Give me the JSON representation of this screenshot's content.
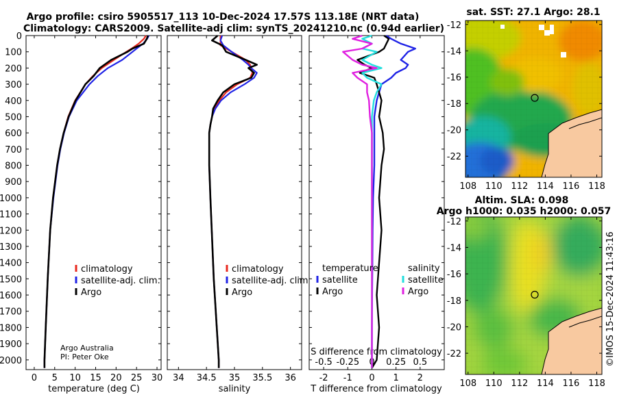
{
  "header": {
    "line1": "Argo profile: csiro 5905517_113 10-Dec-2024 17.57S 113.18E (NRT data)",
    "line2": "Climatology: CARS2009. Satellite-adj clim: synTS_20241210.nc (0.94d earlier)"
  },
  "credit": {
    "org": "Argo Australia",
    "pi": "PI: Peter Oke"
  },
  "watermark": "©IMOS 15-Dec-2024 11:43:16",
  "colors": {
    "climatology": "#e8281e",
    "satellite": "#1f23e6",
    "argo": "#000000",
    "sal_satellite": "#22dede",
    "sal_argo": "#e020e0"
  },
  "chart_data": [
    {
      "type": "line",
      "id": "temperature",
      "title": "",
      "xlabel": "temperature (deg C)",
      "ylabel": "",
      "xlim": [
        -2,
        31
      ],
      "ylim": [
        0,
        2060
      ],
      "xticks": [
        0,
        5,
        10,
        15,
        20,
        25,
        30
      ],
      "yticks": [
        0,
        100,
        200,
        300,
        400,
        500,
        600,
        700,
        800,
        900,
        1000,
        1100,
        1200,
        1300,
        1400,
        1500,
        1600,
        1700,
        1800,
        1900,
        2000
      ],
      "legend": [
        "climatology",
        "satellite-adj. clim.",
        "Argo"
      ],
      "depth": [
        0,
        20,
        50,
        80,
        100,
        150,
        200,
        250,
        300,
        400,
        500,
        600,
        700,
        800,
        1000,
        1200,
        1500,
        1800,
        2000,
        2050
      ],
      "series": [
        {
          "name": "climatology",
          "values": [
            27.3,
            26.8,
            25.5,
            23.8,
            22.5,
            19.5,
            16.5,
            14.3,
            12.5,
            10.0,
            8.3,
            7.2,
            6.3,
            5.6,
            4.6,
            3.9,
            3.3,
            2.8,
            2.5,
            2.5
          ]
        },
        {
          "name": "satellite-adj. clim.",
          "values": [
            28.0,
            27.6,
            26.6,
            25.0,
            24.0,
            21.5,
            18.0,
            15.5,
            13.5,
            10.4,
            8.5,
            7.3,
            6.4,
            5.7,
            4.7,
            3.9,
            3.3,
            2.8,
            2.5,
            2.5
          ]
        },
        {
          "name": "Argo",
          "values": [
            27.8,
            27.5,
            26.8,
            24.0,
            22.8,
            18.8,
            16.0,
            14.5,
            12.5,
            10.1,
            8.4,
            7.2,
            6.3,
            5.6,
            4.6,
            3.9,
            3.3,
            2.8,
            2.5,
            2.5
          ]
        }
      ]
    },
    {
      "type": "line",
      "id": "salinity",
      "xlabel": "salinity",
      "xlim": [
        33.8,
        36.2
      ],
      "ylim": [
        0,
        2060
      ],
      "xticks": [
        34,
        34.5,
        35,
        35.5,
        36
      ],
      "legend": [
        "climatology",
        "satellite-adj. clim.",
        "Argo"
      ],
      "depth": [
        0,
        30,
        60,
        100,
        150,
        180,
        200,
        230,
        260,
        300,
        350,
        400,
        450,
        500,
        550,
        600,
        800,
        1000,
        1500,
        2000,
        2050
      ],
      "series": [
        {
          "name": "climatology",
          "values": [
            34.75,
            34.75,
            34.75,
            34.95,
            35.2,
            35.28,
            35.3,
            35.32,
            35.28,
            35.05,
            34.85,
            34.73,
            34.64,
            34.6,
            34.57,
            34.55,
            34.55,
            34.57,
            34.63,
            34.72,
            34.72
          ]
        },
        {
          "name": "satellite-adj. clim.",
          "values": [
            34.78,
            34.75,
            34.8,
            34.95,
            35.15,
            35.25,
            35.3,
            35.4,
            35.35,
            35.18,
            34.93,
            34.76,
            34.66,
            34.6,
            34.57,
            34.55,
            34.55,
            34.57,
            34.63,
            34.72,
            34.72
          ]
        },
        {
          "name": "Argo",
          "values": [
            34.7,
            34.6,
            34.78,
            34.85,
            35.2,
            35.4,
            35.25,
            35.35,
            35.3,
            35.0,
            34.8,
            34.7,
            34.62,
            34.6,
            34.57,
            34.55,
            34.55,
            34.57,
            34.63,
            34.72,
            34.72
          ]
        }
      ]
    },
    {
      "type": "line",
      "id": "difference",
      "xlabel": "T difference from climatology",
      "xlabel2": "S difference from climatology",
      "xlim": [
        -2.6,
        3.0
      ],
      "ylim": [
        0,
        2060
      ],
      "xticks": [
        -2,
        -1,
        0,
        1,
        2
      ],
      "sticks": [
        "-0.5",
        "-0.25",
        "0",
        "0.25",
        "0.5"
      ],
      "legend_t": {
        "heading": "temperature",
        "items": [
          "satellite",
          "Argo"
        ]
      },
      "legend_s": {
        "heading": "salinity",
        "items": [
          "satellite",
          "Argo"
        ]
      },
      "depth": [
        0,
        20,
        50,
        80,
        100,
        150,
        180,
        200,
        230,
        260,
        300,
        350,
        400,
        500,
        600,
        700,
        800,
        1000,
        1200,
        1400,
        1600,
        1800,
        2000,
        2050
      ],
      "series": [
        {
          "name": "temperature satellite",
          "values": [
            0.6,
            0.8,
            1.2,
            1.8,
            1.5,
            1.2,
            1.5,
            1.4,
            1.0,
            0.8,
            0.4,
            0.3,
            0.2,
            0.1,
            0.1,
            0.1,
            0.1,
            0.05,
            0.03,
            0.02,
            0.01,
            0.0,
            0.0,
            0.0
          ]
        },
        {
          "name": "temperature Argo",
          "values": [
            0.5,
            0.7,
            0.6,
            0.5,
            0.3,
            -0.6,
            -0.3,
            0.0,
            -0.5,
            0.1,
            0.2,
            0.3,
            0.4,
            0.3,
            0.45,
            0.5,
            0.4,
            0.3,
            0.4,
            0.3,
            0.2,
            0.3,
            0.2,
            0.0
          ]
        },
        {
          "name": "salinity satellite",
          "values": [
            0.0,
            -0.1,
            0.0,
            -0.1,
            0.05,
            -0.1,
            0.0,
            0.1,
            -0.1,
            -0.05,
            0.1,
            0.05,
            0.02,
            0.0,
            0.0,
            0.0,
            0.0,
            0.0,
            0.0,
            0.0,
            0.0,
            0.0,
            0.0,
            0.0
          ]
        },
        {
          "name": "salinity Argo",
          "values": [
            -0.1,
            -0.2,
            0.0,
            -0.1,
            -0.3,
            -0.2,
            -0.1,
            0.05,
            -0.2,
            -0.15,
            -0.05,
            -0.05,
            -0.03,
            -0.02,
            0.0,
            0.0,
            0.0,
            0.0,
            0.0,
            0.0,
            0.0,
            0.0,
            0.0,
            0.0
          ]
        }
      ]
    },
    {
      "type": "heatmap",
      "id": "sst_map",
      "title": "sat. SST: 27.1 Argo: 28.1",
      "xlim": [
        107.8,
        118.4
      ],
      "ylim": [
        -23.6,
        -11.7
      ],
      "xticks": [
        108,
        110,
        112,
        114,
        116,
        118
      ],
      "yticks": [
        -12,
        -14,
        -16,
        -18,
        -20,
        -22
      ],
      "float_position": {
        "lon": 113.18,
        "lat": -17.57
      }
    },
    {
      "type": "heatmap",
      "id": "sla_map",
      "title": "Altim. SLA: 0.098",
      "subtitle": "Argo h1000: 0.035 h2000: 0.057",
      "xlim": [
        107.8,
        118.4
      ],
      "ylim": [
        -23.6,
        -11.7
      ],
      "xticks": [
        108,
        110,
        112,
        114,
        116,
        118
      ],
      "yticks": [
        -12,
        -14,
        -16,
        -18,
        -20,
        -22
      ],
      "float_position": {
        "lon": 113.18,
        "lat": -17.57
      }
    }
  ]
}
